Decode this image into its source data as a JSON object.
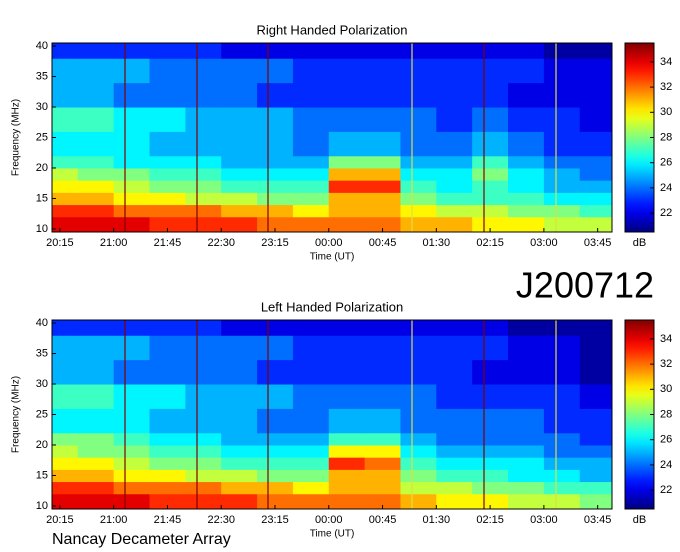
{
  "chart_data": [
    {
      "type": "heatmap",
      "title": "Right Handed Polarization",
      "x_label": "Time (UT)",
      "y_label": "Frequency (MHz)",
      "colorbar_label": "dB",
      "colormap": "jet",
      "xlim": [
        20.14,
        27.95
      ],
      "ylim": [
        9.5,
        40.5
      ],
      "zlim": [
        20.5,
        35.5
      ],
      "xticks": [
        {
          "value": 20.25,
          "label": "20:15"
        },
        {
          "value": 21,
          "label": "21:00"
        },
        {
          "value": 21.75,
          "label": "21:45"
        },
        {
          "value": 22.5,
          "label": "22:30"
        },
        {
          "value": 23.25,
          "label": "23:15"
        },
        {
          "value": 24,
          "label": "00:00"
        },
        {
          "value": 24.75,
          "label": "00:45"
        },
        {
          "value": 25.5,
          "label": "01:30"
        },
        {
          "value": 26.25,
          "label": "02:15"
        },
        {
          "value": 27,
          "label": "03:00"
        },
        {
          "value": 27.75,
          "label": "03:45"
        }
      ],
      "yticks": [
        10,
        15,
        20,
        25,
        30,
        35,
        40
      ],
      "zticks": [
        22,
        24,
        26,
        28,
        30,
        32,
        34
      ],
      "x_edges": [
        20.14,
        20.5,
        21,
        21.5,
        22,
        22.5,
        23,
        23.5,
        24,
        24.5,
        25,
        25.5,
        26,
        26.5,
        27,
        27.5,
        27.95
      ],
      "y_edges": [
        9.5,
        12,
        14,
        16,
        18,
        20,
        22,
        26,
        30,
        34,
        38,
        40.5
      ],
      "values": [
        [
          34,
          34,
          34,
          33,
          33,
          33,
          32,
          32,
          32,
          32,
          31,
          31,
          30,
          30,
          29,
          29
        ],
        [
          33,
          33,
          32,
          32,
          32,
          31,
          31,
          30,
          31,
          31,
          30,
          29,
          29,
          28,
          28,
          27
        ],
        [
          31,
          31,
          30,
          30,
          29,
          29,
          28,
          28,
          31,
          31,
          28,
          27,
          27,
          27,
          26,
          26
        ],
        [
          30,
          30,
          29,
          28,
          28,
          27,
          27,
          27,
          33,
          33,
          27,
          26,
          27,
          26,
          25,
          25
        ],
        [
          29,
          28,
          28,
          27,
          27,
          26,
          26,
          26,
          31,
          31,
          26,
          26,
          28,
          26,
          25,
          24
        ],
        [
          27,
          27,
          26,
          26,
          26,
          25,
          25,
          25,
          28,
          28,
          25,
          25,
          27,
          25,
          24,
          24
        ],
        [
          26,
          26,
          26,
          25,
          25,
          25,
          25,
          24,
          25,
          25,
          24,
          24,
          25,
          24,
          23,
          23
        ],
        [
          27,
          27,
          26,
          26,
          25,
          25,
          25,
          24,
          24,
          24,
          24,
          23,
          24,
          23,
          23,
          22
        ],
        [
          25,
          25,
          24,
          24,
          24,
          24,
          23,
          23,
          23,
          23,
          23,
          23,
          23,
          22,
          22,
          22
        ],
        [
          25,
          25,
          25,
          24,
          24,
          24,
          24,
          23,
          23,
          23,
          23,
          23,
          23,
          23,
          22,
          22
        ],
        [
          23,
          23,
          23,
          23,
          23,
          22,
          22,
          22,
          22,
          22,
          22,
          22,
          22,
          22,
          21,
          21
        ]
      ]
    },
    {
      "type": "heatmap",
      "title": "Left Handed Polarization",
      "x_label": "Time (UT)",
      "y_label": "Frequency (MHz)",
      "colorbar_label": "dB",
      "colormap": "jet",
      "xlim": [
        20.14,
        27.95
      ],
      "ylim": [
        9.5,
        40.5
      ],
      "zlim": [
        20.5,
        35.5
      ],
      "xticks": [
        {
          "value": 20.25,
          "label": "20:15"
        },
        {
          "value": 21,
          "label": "21:00"
        },
        {
          "value": 21.75,
          "label": "21:45"
        },
        {
          "value": 22.5,
          "label": "22:30"
        },
        {
          "value": 23.25,
          "label": "23:15"
        },
        {
          "value": 24,
          "label": "00:00"
        },
        {
          "value": 24.75,
          "label": "00:45"
        },
        {
          "value": 25.5,
          "label": "01:30"
        },
        {
          "value": 26.25,
          "label": "02:15"
        },
        {
          "value": 27,
          "label": "03:00"
        },
        {
          "value": 27.75,
          "label": "03:45"
        }
      ],
      "yticks": [
        10,
        15,
        20,
        25,
        30,
        35,
        40
      ],
      "zticks": [
        22,
        24,
        26,
        28,
        30,
        32,
        34
      ],
      "x_edges": [
        20.14,
        20.5,
        21,
        21.5,
        22,
        22.5,
        23,
        23.5,
        24,
        24.5,
        25,
        25.5,
        26,
        26.5,
        27,
        27.5,
        27.95
      ],
      "y_edges": [
        9.5,
        12,
        14,
        16,
        18,
        20,
        22,
        26,
        30,
        34,
        38,
        40.5
      ],
      "values": [
        [
          34,
          34,
          34,
          33,
          33,
          33,
          32,
          32,
          32,
          32,
          31,
          30,
          30,
          29,
          29,
          28
        ],
        [
          33,
          33,
          32,
          32,
          32,
          31,
          31,
          30,
          31,
          31,
          29,
          29,
          28,
          28,
          27,
          27
        ],
        [
          31,
          31,
          30,
          30,
          29,
          29,
          28,
          28,
          31,
          31,
          28,
          27,
          27,
          26,
          26,
          25
        ],
        [
          30,
          30,
          29,
          28,
          28,
          27,
          27,
          27,
          33,
          32,
          27,
          26,
          26,
          26,
          25,
          25
        ],
        [
          29,
          28,
          28,
          27,
          27,
          26,
          26,
          26,
          30,
          30,
          26,
          25,
          25,
          25,
          24,
          24
        ],
        [
          28,
          28,
          27,
          26,
          26,
          25,
          25,
          25,
          27,
          27,
          25,
          24,
          24,
          24,
          24,
          23
        ],
        [
          26,
          26,
          26,
          25,
          25,
          25,
          24,
          24,
          25,
          25,
          24,
          24,
          24,
          24,
          23,
          23
        ],
        [
          27,
          27,
          26,
          26,
          25,
          25,
          25,
          24,
          24,
          24,
          24,
          23,
          23,
          23,
          23,
          22
        ],
        [
          25,
          25,
          24,
          24,
          24,
          24,
          23,
          23,
          23,
          23,
          23,
          23,
          22,
          22,
          22,
          21
        ],
        [
          25,
          25,
          25,
          24,
          24,
          24,
          24,
          23,
          23,
          23,
          23,
          23,
          23,
          22,
          22,
          21
        ],
        [
          23,
          23,
          23,
          23,
          23,
          22,
          22,
          22,
          22,
          22,
          22,
          22,
          22,
          21,
          21,
          21
        ]
      ]
    }
  ],
  "annotation": "J200712",
  "credit": "Nancay Decameter Array"
}
